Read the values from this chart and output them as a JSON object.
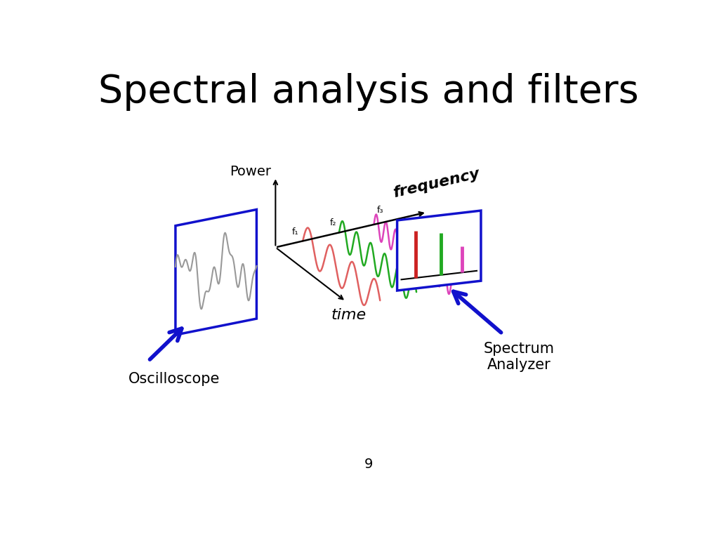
{
  "title": "Spectral analysis and filters",
  "title_fontsize": 40,
  "background_color": "#ffffff",
  "page_number": "9",
  "labels": {
    "power": "Power",
    "time": "time",
    "frequency": "frequency",
    "f1": "f₁",
    "f2": "f₂",
    "f3": "f₃",
    "oscilloscope": "Oscilloscope",
    "spectrum_analyzer": "Spectrum\nAnalyzer"
  },
  "colors": {
    "blue": "#1111cc",
    "red": "#cc2222",
    "green": "#22aa22",
    "pink": "#dd44bb",
    "gray": "#999999",
    "black": "#000000"
  }
}
